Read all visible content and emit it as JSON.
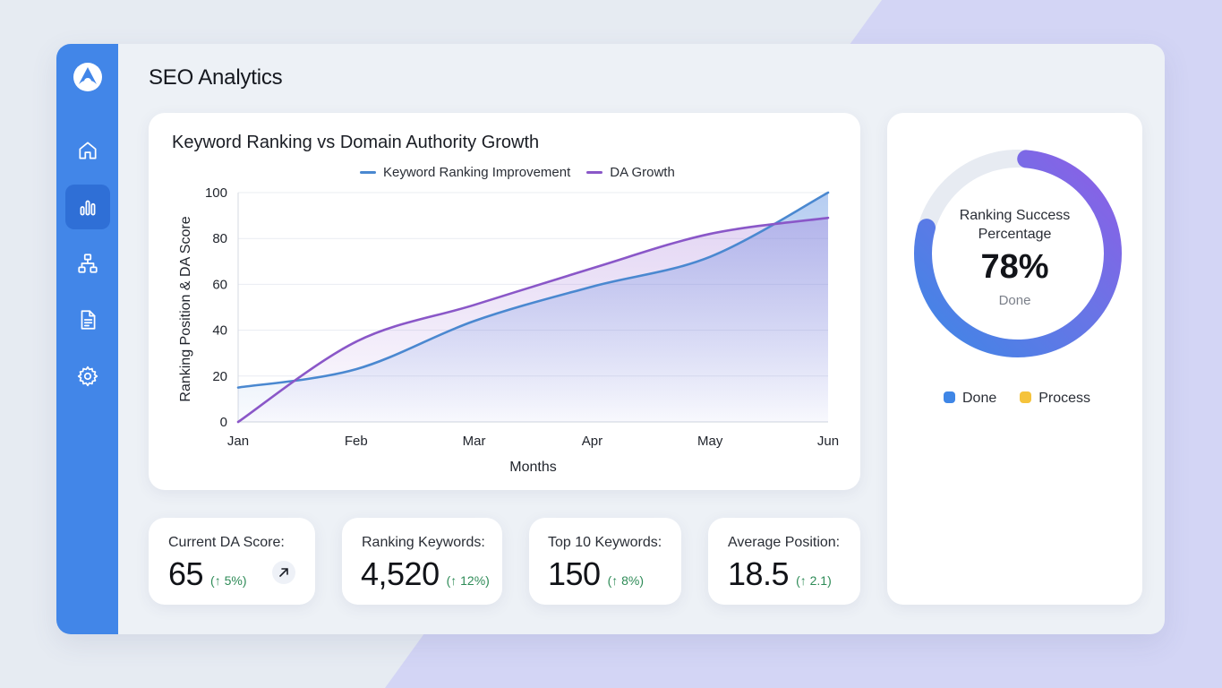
{
  "app": {
    "title": "SEO Analytics"
  },
  "sidebar": {
    "items": [
      {
        "name": "home-icon",
        "active": false
      },
      {
        "name": "analytics-icon",
        "active": true
      },
      {
        "name": "sitemap-icon",
        "active": false
      },
      {
        "name": "document-icon",
        "active": false
      },
      {
        "name": "settings-icon",
        "active": false
      }
    ]
  },
  "colors": {
    "sidebar": "#4286e8",
    "keyword_line": "#4a88d0",
    "da_line": "#8a57c8",
    "done": "#3f86e6",
    "process": "#f5c33b",
    "positive_delta": "#2e8b57"
  },
  "chart_data": {
    "type": "line",
    "title": "Keyword Ranking vs Domain Authority Growth",
    "xlabel": "Months",
    "ylabel": "Ranking Position & DA Score",
    "categories": [
      "Jan",
      "Feb",
      "Mar",
      "Apr",
      "May",
      "Jun"
    ],
    "ylim": [
      0,
      100
    ],
    "yticks": [
      "0",
      "20",
      "40",
      "60",
      "80",
      "100"
    ],
    "grid": true,
    "legend_position": "top",
    "series": [
      {
        "name": "Keyword Ranking Improvement",
        "color": "#4a88d0",
        "fill": "area",
        "values": [
          15,
          23,
          44,
          59,
          72,
          100
        ]
      },
      {
        "name": "DA Growth",
        "color": "#8a57c8",
        "fill": "area",
        "values": [
          0,
          35,
          51,
          67,
          82,
          89
        ]
      }
    ]
  },
  "donut": {
    "line1": "Ranking Success",
    "line2": "Percentage",
    "value": "78%",
    "percent": 78,
    "sub": "Done",
    "legend": [
      {
        "label": "Done",
        "color": "#3f86e6"
      },
      {
        "label": "Process",
        "color": "#f5c33b"
      }
    ]
  },
  "stats": [
    {
      "label": "Current DA Score:",
      "value": "65",
      "delta": "(↑ 5%)",
      "icon": "arrow-up-right-icon"
    },
    {
      "label": "Ranking Keywords:",
      "value": "4,520",
      "delta": "(↑ 12%)"
    },
    {
      "label": "Top 10 Keywords:",
      "value": "150",
      "delta": "(↑ 8%)"
    },
    {
      "label": "Average Position:",
      "value": "18.5",
      "delta": "(↑ 2.1)"
    }
  ]
}
